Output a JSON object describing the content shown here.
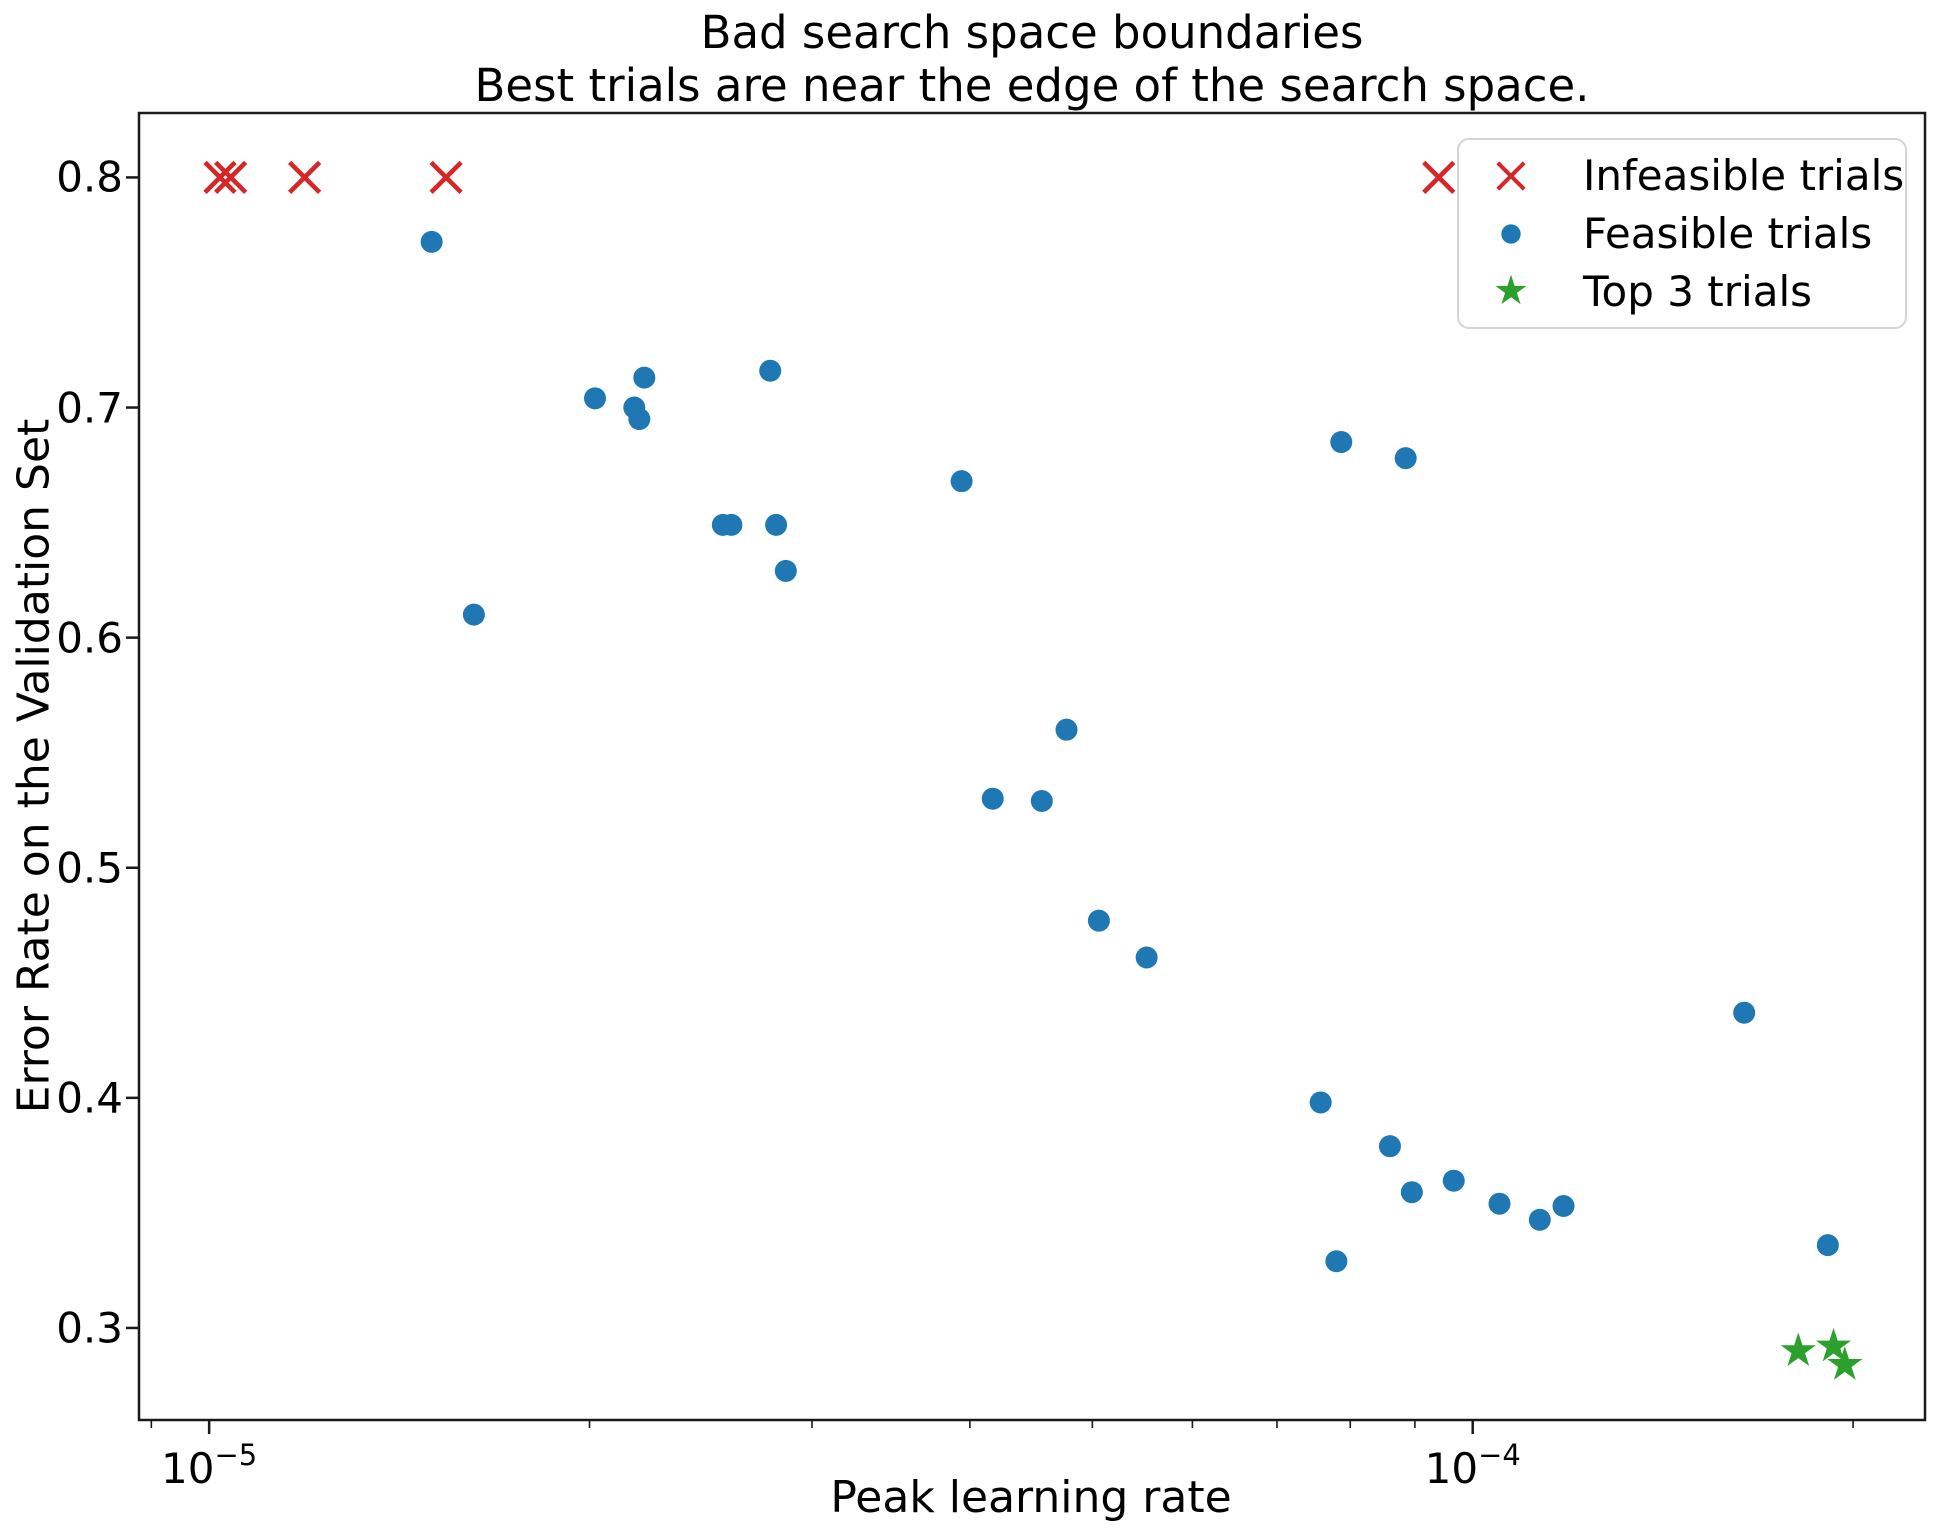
{
  "figure_title": "Bad search space boundaries",
  "figure_subtitle": "Best trials are near the edge of the search space.",
  "legend": {
    "position": "upper right",
    "items": [
      {
        "label": "Infeasible trials",
        "marker": "x",
        "color": "#d62728"
      },
      {
        "label": "Feasible trials",
        "marker": "circle",
        "color": "#1f77b4"
      },
      {
        "label": "Top 3 trials",
        "marker": "star",
        "color": "#2ca02c"
      }
    ]
  },
  "colors": {
    "infeasible": "#d62728",
    "feasible": "#1f77b4",
    "top3": "#2ca02c",
    "spine": "#1a1a1a",
    "legend_border": "#d4d4d4",
    "background": "#ffffff"
  },
  "chart_data": {
    "type": "scatter",
    "title": "Bad search space boundaries",
    "subtitle": "Best trials are near the edge of the search space.",
    "xlabel": "Peak learning rate",
    "ylabel": "Error Rate on the Validation Set",
    "xscale": "log",
    "yscale": "linear",
    "xlim": [
      8.8e-06,
      0.000228
    ],
    "ylim": [
      0.26,
      0.828
    ],
    "grid": false,
    "legend_position": "upper right",
    "x_major_ticks": [
      {
        "value": 1e-05,
        "mantissa": "10",
        "exponent": "−5"
      },
      {
        "value": 0.0001,
        "mantissa": "10",
        "exponent": "−4"
      }
    ],
    "x_minor_ticks": [
      9e-06,
      2e-05,
      3e-05,
      4e-05,
      5e-05,
      6e-05,
      7e-05,
      8e-05,
      9e-05,
      0.0002
    ],
    "y_ticks": [
      {
        "value": 0.3,
        "label": "0.3"
      },
      {
        "value": 0.4,
        "label": "0.4"
      },
      {
        "value": 0.5,
        "label": "0.5"
      },
      {
        "value": 0.6,
        "label": "0.6"
      },
      {
        "value": 0.7,
        "label": "0.7"
      },
      {
        "value": 0.8,
        "label": "0.8"
      }
    ],
    "series": [
      {
        "name": "Infeasible trials",
        "marker": "x",
        "color": "#d62728",
        "points": [
          [
            1.02e-05,
            0.8
          ],
          [
            1.04e-05,
            0.8
          ],
          [
            1.19e-05,
            0.8
          ],
          [
            1.54e-05,
            0.8
          ],
          [
            9.4e-05,
            0.8
          ]
        ]
      },
      {
        "name": "Feasible trials",
        "marker": "circle",
        "color": "#1f77b4",
        "points": [
          [
            1.5e-05,
            0.772
          ],
          [
            1.62e-05,
            0.61
          ],
          [
            2.02e-05,
            0.704
          ],
          [
            2.17e-05,
            0.7
          ],
          [
            2.19e-05,
            0.695
          ],
          [
            2.21e-05,
            0.713
          ],
          [
            2.55e-05,
            0.649
          ],
          [
            2.59e-05,
            0.649
          ],
          [
            2.78e-05,
            0.716
          ],
          [
            2.81e-05,
            0.649
          ],
          [
            2.86e-05,
            0.629
          ],
          [
            3.94e-05,
            0.668
          ],
          [
            4.17e-05,
            0.53
          ],
          [
            4.56e-05,
            0.529
          ],
          [
            4.77e-05,
            0.56
          ],
          [
            5.06e-05,
            0.477
          ],
          [
            5.52e-05,
            0.461
          ],
          [
            7.58e-05,
            0.398
          ],
          [
            7.8e-05,
            0.329
          ],
          [
            7.87e-05,
            0.685
          ],
          [
            8.6e-05,
            0.379
          ],
          [
            8.85e-05,
            0.678
          ],
          [
            8.95e-05,
            0.359
          ],
          [
            9.66e-05,
            0.364
          ],
          [
            0.000105,
            0.354
          ],
          [
            0.000113,
            0.347
          ],
          [
            0.000118,
            0.353
          ],
          [
            0.000164,
            0.437
          ],
          [
            0.000191,
            0.336
          ]
        ]
      },
      {
        "name": "Top 3 trials",
        "marker": "star",
        "color": "#2ca02c",
        "points": [
          [
            0.000181,
            0.29
          ],
          [
            0.000193,
            0.292
          ],
          [
            0.000197,
            0.284
          ]
        ]
      }
    ]
  }
}
